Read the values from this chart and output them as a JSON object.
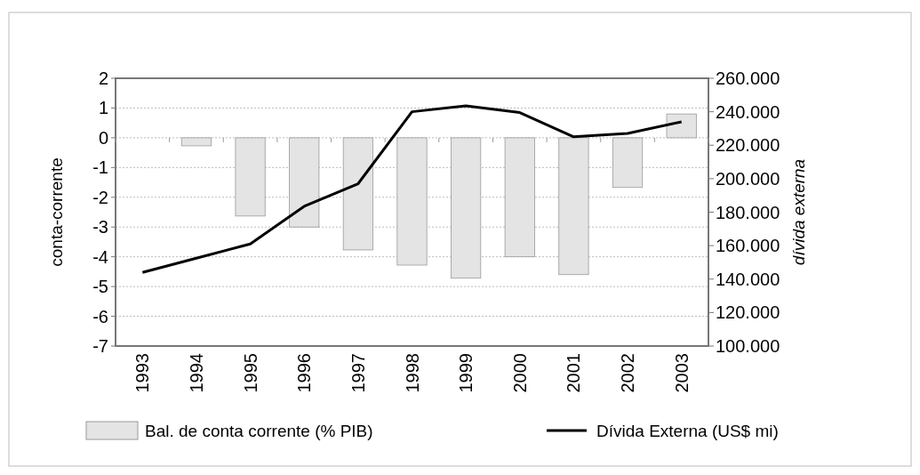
{
  "chart_data": {
    "type": "bar",
    "categories": [
      "1993",
      "1994",
      "1995",
      "1996",
      "1997",
      "1998",
      "1999",
      "2000",
      "2001",
      "2002",
      "2003"
    ],
    "ylabel": "conta-corrente",
    "y2label": "dívida externa",
    "series": [
      {
        "name": "Bal. de conta corrente (% PIB)",
        "color": "#e4e4e4",
        "values": [
          null,
          -0.27,
          -2.63,
          -3.0,
          -3.77,
          -4.28,
          -4.72,
          -4.0,
          -4.6,
          -1.67,
          0.8
        ]
      },
      {
        "name": "Dívida Externa (US$ mi)",
        "type": "line",
        "axis": "y2",
        "color": "#000000",
        "values": [
          144000,
          152500,
          161000,
          183500,
          197000,
          240000,
          243500,
          239500,
          225000,
          227000,
          234000
        ]
      }
    ],
    "ylim": [
      -7,
      2
    ],
    "yticks": [
      -7,
      -6,
      -5,
      -4,
      -3,
      -2,
      -1,
      0,
      1,
      2
    ],
    "y2lim": [
      100000,
      260000
    ],
    "y2ticks": [
      {
        "value": 100000,
        "label": "100.000"
      },
      {
        "value": 120000,
        "label": "120.000"
      },
      {
        "value": 140000,
        "label": "140.000"
      },
      {
        "value": 160000,
        "label": "160.000"
      },
      {
        "value": 180000,
        "label": "180.000"
      },
      {
        "value": 200000,
        "label": "200.000"
      },
      {
        "value": 220000,
        "label": "220.000"
      },
      {
        "value": 240000,
        "label": "240.000"
      },
      {
        "value": 260000,
        "label": "260.000"
      }
    ],
    "grid": "y",
    "legend": "bottom"
  }
}
